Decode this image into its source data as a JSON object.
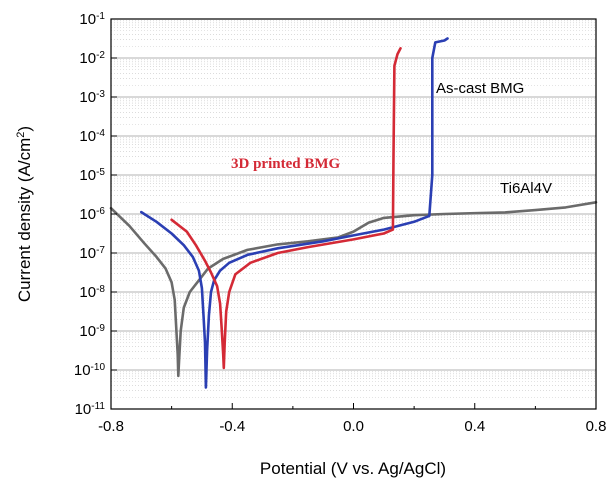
{
  "chart_data": {
    "type": "line",
    "xlabel": "Potential (V vs. Ag/AgCl)",
    "ylabel": "Current density (A/cm²)",
    "ylabel_base": "Current density (A/cm",
    "ylabel_sup": "2",
    "ylabel_end": ")",
    "xlim": [
      -0.8,
      0.8
    ],
    "y_scale": "log",
    "ylim_exponent": [
      -11,
      -1
    ],
    "x_ticks": [
      "-0.8",
      "-0.4",
      "0.0",
      "0.4",
      "0.8"
    ],
    "y_ticks": [
      {
        "base": "10",
        "exp": "-1"
      },
      {
        "base": "10",
        "exp": "-2"
      },
      {
        "base": "10",
        "exp": "-3"
      },
      {
        "base": "10",
        "exp": "-4"
      },
      {
        "base": "10",
        "exp": "-5"
      },
      {
        "base": "10",
        "exp": "-6"
      },
      {
        "base": "10",
        "exp": "-7"
      },
      {
        "base": "10",
        "exp": "-8"
      },
      {
        "base": "10",
        "exp": "-9"
      },
      {
        "base": "10",
        "exp": "-10"
      },
      {
        "base": "10",
        "exp": "-11"
      }
    ],
    "grid": true,
    "legend": "none",
    "annotations": {
      "as_cast": "As-cast BMG",
      "printed": "3D printed BMG",
      "ti": "Ti6Al4V"
    },
    "series": [
      {
        "color": "#6b6b6b",
        "points": [
          [
            -0.8,
            -5.85
          ],
          [
            -0.74,
            -6.3
          ],
          [
            -0.69,
            -6.75
          ],
          [
            -0.65,
            -7.1
          ],
          [
            -0.62,
            -7.4
          ],
          [
            -0.6,
            -7.75
          ],
          [
            -0.59,
            -8.2
          ],
          [
            -0.585,
            -8.9
          ],
          [
            -0.58,
            -9.6
          ],
          [
            -0.578,
            -10.15
          ],
          [
            -0.575,
            -9.7
          ],
          [
            -0.57,
            -9.0
          ],
          [
            -0.56,
            -8.4
          ],
          [
            -0.54,
            -8.0
          ],
          [
            -0.51,
            -7.7
          ],
          [
            -0.48,
            -7.4
          ],
          [
            -0.43,
            -7.15
          ],
          [
            -0.35,
            -6.92
          ],
          [
            -0.25,
            -6.78
          ],
          [
            -0.15,
            -6.7
          ],
          [
            -0.05,
            -6.6
          ],
          [
            0.0,
            -6.45
          ],
          [
            0.05,
            -6.22
          ],
          [
            0.1,
            -6.1
          ],
          [
            0.2,
            -6.03
          ],
          [
            0.3,
            -6.0
          ],
          [
            0.4,
            -5.98
          ],
          [
            0.5,
            -5.96
          ],
          [
            0.6,
            -5.9
          ],
          [
            0.7,
            -5.83
          ],
          [
            0.8,
            -5.7
          ]
        ]
      },
      {
        "color": "#2b3fb3",
        "points": [
          [
            -0.7,
            -5.95
          ],
          [
            -0.65,
            -6.2
          ],
          [
            -0.6,
            -6.5
          ],
          [
            -0.56,
            -6.8
          ],
          [
            -0.53,
            -7.1
          ],
          [
            -0.51,
            -7.45
          ],
          [
            -0.5,
            -7.9
          ],
          [
            -0.495,
            -8.6
          ],
          [
            -0.49,
            -9.3
          ],
          [
            -0.487,
            -10.45
          ],
          [
            -0.483,
            -9.5
          ],
          [
            -0.477,
            -8.6
          ],
          [
            -0.47,
            -8.0
          ],
          [
            -0.46,
            -7.7
          ],
          [
            -0.44,
            -7.45
          ],
          [
            -0.41,
            -7.25
          ],
          [
            -0.35,
            -7.05
          ],
          [
            -0.25,
            -6.88
          ],
          [
            -0.1,
            -6.7
          ],
          [
            0.0,
            -6.55
          ],
          [
            0.1,
            -6.4
          ],
          [
            0.2,
            -6.2
          ],
          [
            0.25,
            -6.05
          ],
          [
            0.26,
            -5.0
          ],
          [
            0.26,
            -2.0
          ],
          [
            0.27,
            -1.6
          ],
          [
            0.3,
            -1.55
          ],
          [
            0.31,
            -1.5
          ]
        ]
      },
      {
        "color": "#d42a36",
        "points": [
          [
            -0.6,
            -6.15
          ],
          [
            -0.55,
            -6.45
          ],
          [
            -0.52,
            -6.8
          ],
          [
            -0.49,
            -7.2
          ],
          [
            -0.47,
            -7.5
          ],
          [
            -0.45,
            -7.85
          ],
          [
            -0.44,
            -8.3
          ],
          [
            -0.435,
            -8.9
          ],
          [
            -0.43,
            -9.6
          ],
          [
            -0.428,
            -9.95
          ],
          [
            -0.425,
            -9.3
          ],
          [
            -0.42,
            -8.5
          ],
          [
            -0.41,
            -8.0
          ],
          [
            -0.39,
            -7.55
          ],
          [
            -0.34,
            -7.25
          ],
          [
            -0.25,
            -7.0
          ],
          [
            -0.15,
            -6.85
          ],
          [
            0.0,
            -6.65
          ],
          [
            0.1,
            -6.5
          ],
          [
            0.13,
            -6.4
          ],
          [
            0.132,
            -4.5
          ],
          [
            0.135,
            -2.2
          ],
          [
            0.145,
            -1.9
          ],
          [
            0.155,
            -1.75
          ]
        ]
      }
    ]
  }
}
